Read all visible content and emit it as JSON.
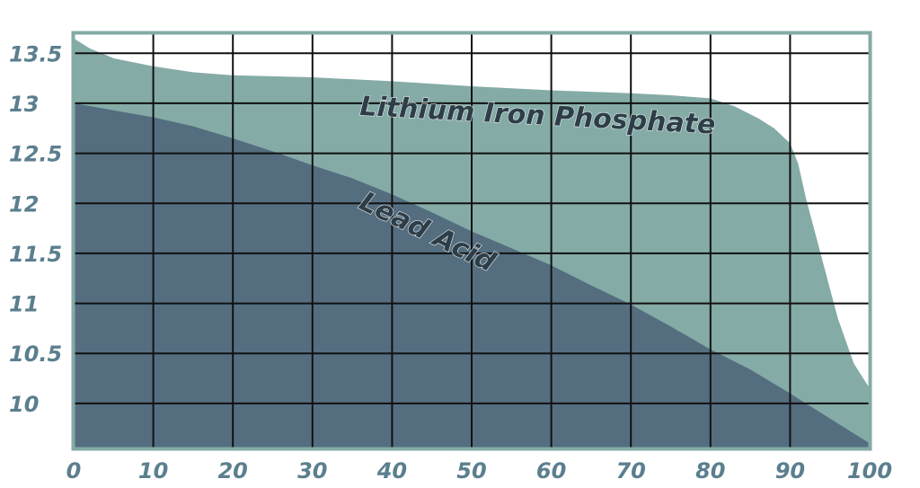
{
  "chart_data": {
    "type": "area",
    "title": "",
    "xlabel": "",
    "ylabel": "",
    "xlim": [
      0,
      100
    ],
    "ylim": [
      9.55,
      13.7
    ],
    "x_ticks": [
      0,
      10,
      20,
      30,
      40,
      50,
      60,
      70,
      80,
      90,
      100
    ],
    "x_tick_labels": [
      "0",
      "10",
      "20",
      "30",
      "40",
      "50",
      "60",
      "70",
      "80",
      "90",
      "100"
    ],
    "y_ticks": [
      10,
      10.5,
      11,
      11.5,
      12,
      12.5,
      13,
      13.5
    ],
    "y_tick_labels": [
      "10",
      "10.5",
      "11",
      "11.5",
      "12",
      "12.5",
      "13",
      "13.5"
    ],
    "grid": true,
    "series": [
      {
        "name": "Lithium Iron Phosphate",
        "color": "#85aba6",
        "x": [
          0,
          2,
          5,
          10,
          15,
          20,
          30,
          40,
          50,
          60,
          70,
          75,
          80,
          83,
          86,
          88,
          90,
          91,
          92,
          94,
          96,
          98,
          100
        ],
        "values": [
          13.65,
          13.55,
          13.45,
          13.37,
          13.31,
          13.28,
          13.26,
          13.22,
          13.17,
          13.13,
          13.1,
          13.08,
          13.05,
          12.97,
          12.85,
          12.75,
          12.6,
          12.4,
          12.05,
          11.45,
          10.85,
          10.4,
          10.15
        ]
      },
      {
        "name": "Lead Acid",
        "color": "#546e80",
        "x": [
          0,
          5,
          10,
          15,
          20,
          25,
          30,
          35,
          40,
          45,
          50,
          55,
          60,
          65,
          70,
          75,
          80,
          85,
          90,
          95,
          100
        ],
        "values": [
          13.0,
          12.93,
          12.86,
          12.77,
          12.65,
          12.52,
          12.38,
          12.25,
          12.09,
          11.91,
          11.72,
          11.55,
          11.38,
          11.18,
          10.99,
          10.77,
          10.54,
          10.34,
          10.1,
          9.85,
          9.6
        ]
      }
    ]
  },
  "colors": {
    "frame": "#84aaa6",
    "tick_text": "#5b7f8e",
    "grid": "#111111"
  }
}
